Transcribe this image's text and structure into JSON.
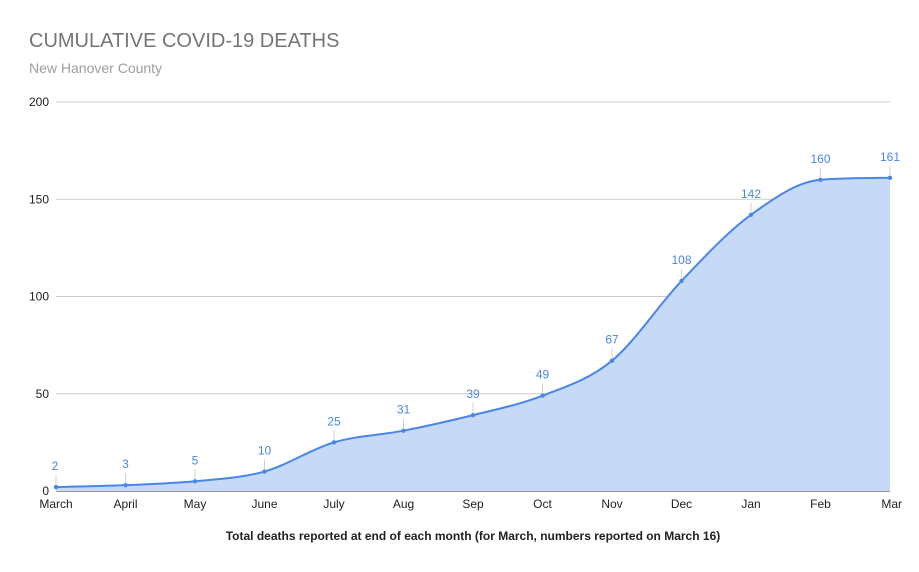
{
  "chart_data": {
    "type": "area",
    "title": "CUMULATIVE COVID-19 DEATHS",
    "subtitle": "New Hanover County",
    "xlabel": "Total deaths reported at end of each month (for March, numbers reported on March 16)",
    "ylabel": "",
    "categories": [
      "March",
      "April",
      "May",
      "June",
      "July",
      "Aug",
      "Sep",
      "Oct",
      "Nov",
      "Dec",
      "Jan",
      "Feb",
      "Mar"
    ],
    "series": [
      {
        "values": [
          2,
          3,
          5,
          10,
          25,
          31,
          39,
          49,
          67,
          108,
          142,
          160,
          161
        ],
        "data_labels": [
          "2",
          "3",
          "5",
          "10",
          "25",
          "31",
          "39",
          "49",
          "67",
          "108",
          "142",
          "160",
          "161"
        ]
      }
    ],
    "ylim": [
      0,
      200
    ],
    "yticks": [
      0,
      50,
      100,
      150,
      200
    ],
    "ytick_labels": [
      "0",
      "50",
      "100",
      "150",
      "200"
    ],
    "grid": true,
    "legend": "none",
    "colors": {
      "line": "#4a86e8",
      "fill": "#c6daf8",
      "label": "#4a86e8",
      "grid": "#cccccc",
      "axis_text": "#212121",
      "title": "#757575",
      "subtitle": "#9e9e9e"
    }
  }
}
